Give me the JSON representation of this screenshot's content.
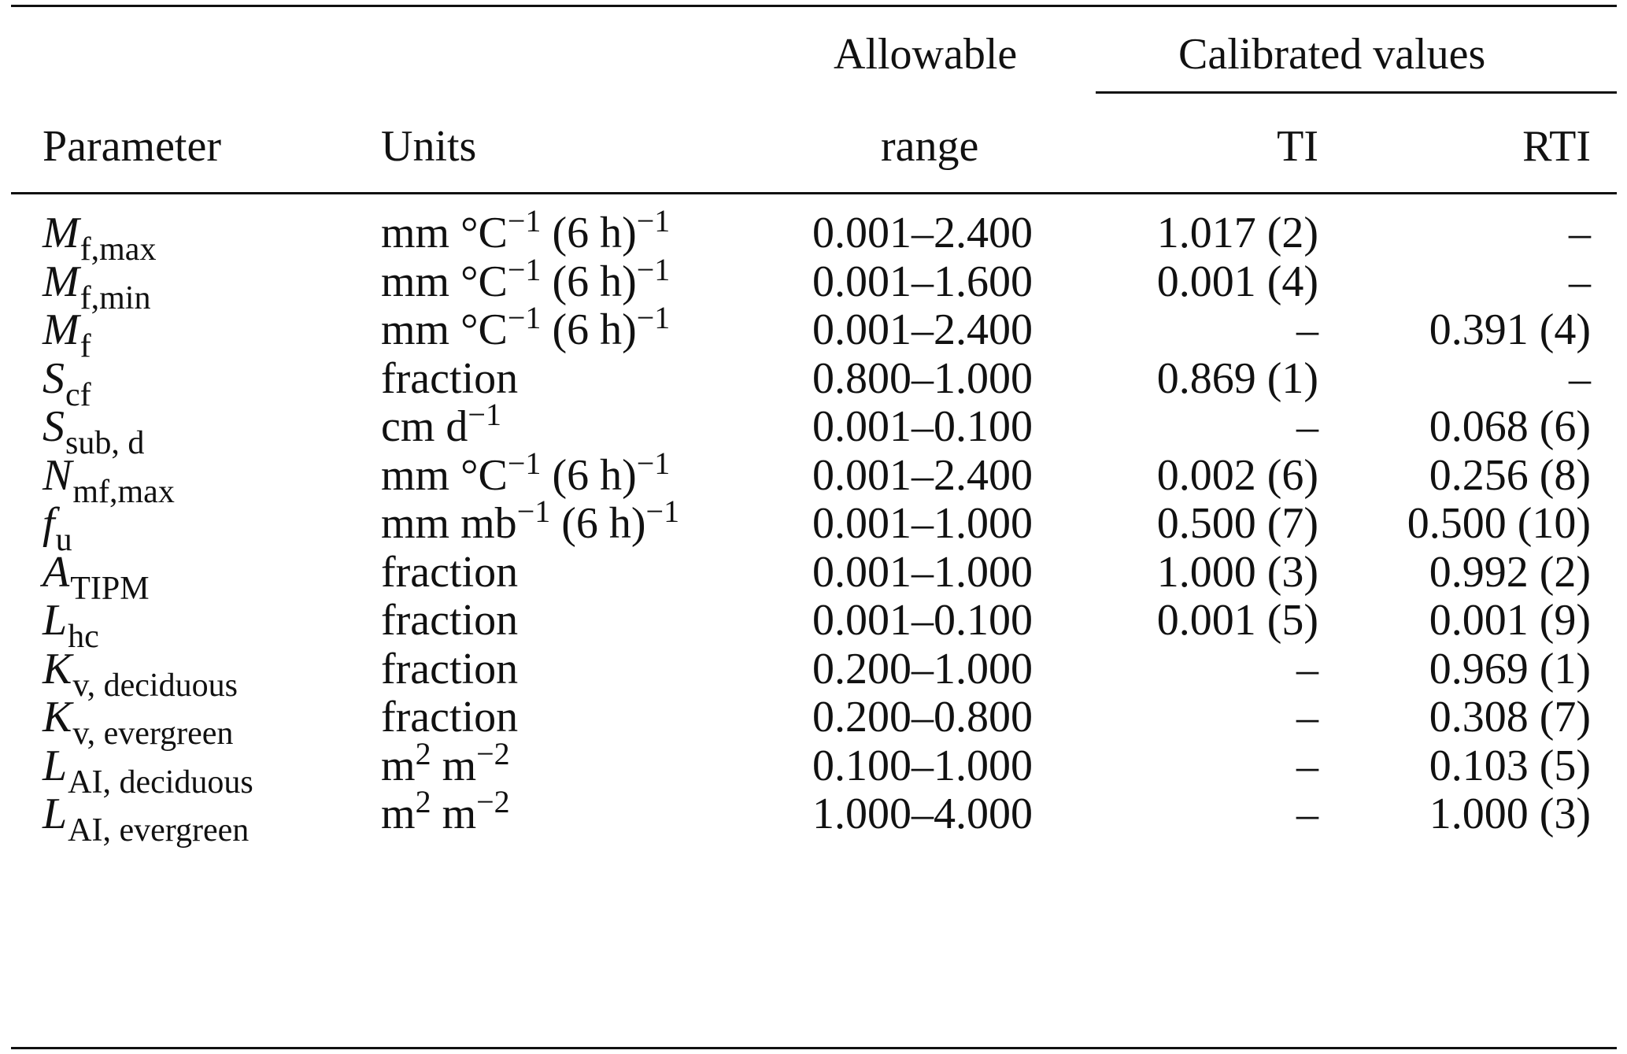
{
  "header": {
    "allowable_top": "Allowable",
    "allowable_bottom": "range",
    "calibrated": "Calibrated values",
    "parameter": "Parameter",
    "units": "Units",
    "ti": "TI",
    "rti": "RTI"
  },
  "rows": [
    {
      "symbol": "M",
      "sub": "f,max",
      "unit_main": "mm °C",
      "unit_sup": "−1",
      "unit_tail": " (6 h)",
      "unit_tail_sup": "−1",
      "range": "0.001–2.400",
      "ti": "1.017 (2)",
      "rti": "–"
    },
    {
      "symbol": "M",
      "sub": "f,min",
      "unit_main": "mm °C",
      "unit_sup": "−1",
      "unit_tail": " (6 h)",
      "unit_tail_sup": "−1",
      "range": "0.001–1.600",
      "ti": "0.001 (4)",
      "rti": "–"
    },
    {
      "symbol": "M",
      "sub": "f",
      "unit_main": "mm °C",
      "unit_sup": "−1",
      "unit_tail": " (6 h)",
      "unit_tail_sup": "−1",
      "range": "0.001–2.400",
      "ti": "–",
      "rti": "0.391 (4)"
    },
    {
      "symbol": "S",
      "sub": "cf",
      "unit_main": "fraction",
      "unit_sup": "",
      "unit_tail": "",
      "unit_tail_sup": "",
      "range": "0.800–1.000",
      "ti": "0.869 (1)",
      "rti": "–"
    },
    {
      "symbol": "S",
      "sub": "sub, d",
      "unit_main": "cm d",
      "unit_sup": "−1",
      "unit_tail": "",
      "unit_tail_sup": "",
      "range": "0.001–0.100",
      "ti": "–",
      "rti": "0.068 (6)"
    },
    {
      "symbol": "N",
      "sub": "mf,max",
      "unit_main": "mm °C",
      "unit_sup": "−1",
      "unit_tail": " (6 h)",
      "unit_tail_sup": "−1",
      "range": "0.001–2.400",
      "ti": "0.002 (6)",
      "rti": "0.256 (8)"
    },
    {
      "symbol": "f",
      "sub": "u",
      "unit_main": "mm mb",
      "unit_sup": "−1",
      "unit_tail": " (6 h)",
      "unit_tail_sup": "−1",
      "range": "0.001–1.000",
      "ti": "0.500 (7)",
      "rti": "0.500 (10)"
    },
    {
      "symbol": "A",
      "sub": "TIPM",
      "unit_main": "fraction",
      "unit_sup": "",
      "unit_tail": "",
      "unit_tail_sup": "",
      "range": "0.001–1.000",
      "ti": "1.000 (3)",
      "rti": "0.992 (2)"
    },
    {
      "symbol": "L",
      "sub": "hc",
      "unit_main": "fraction",
      "unit_sup": "",
      "unit_tail": "",
      "unit_tail_sup": "",
      "range": "0.001–0.100",
      "ti": "0.001 (5)",
      "rti": "0.001 (9)"
    },
    {
      "symbol": "K",
      "sub": "v, deciduous",
      "unit_main": "fraction",
      "unit_sup": "",
      "unit_tail": "",
      "unit_tail_sup": "",
      "range": "0.200–1.000",
      "ti": "–",
      "rti": "0.969 (1)"
    },
    {
      "symbol": "K",
      "sub": "v, evergreen",
      "unit_main": "fraction",
      "unit_sup": "",
      "unit_tail": "",
      "unit_tail_sup": "",
      "range": "0.200–0.800",
      "ti": "–",
      "rti": "0.308 (7)"
    },
    {
      "symbol": "L",
      "sub": "AI, deciduous",
      "unit_main": "m",
      "unit_sup": "2",
      "unit_tail": " m",
      "unit_tail_sup": "−2",
      "range": "0.100–1.000",
      "ti": "–",
      "rti": "0.103 (5)"
    },
    {
      "symbol": "L",
      "sub": "AI, evergreen",
      "unit_main": "m",
      "unit_sup": "2",
      "unit_tail": " m",
      "unit_tail_sup": "−2",
      "range": "1.000–4.000",
      "ti": "–",
      "rti": "1.000 (3)"
    }
  ]
}
